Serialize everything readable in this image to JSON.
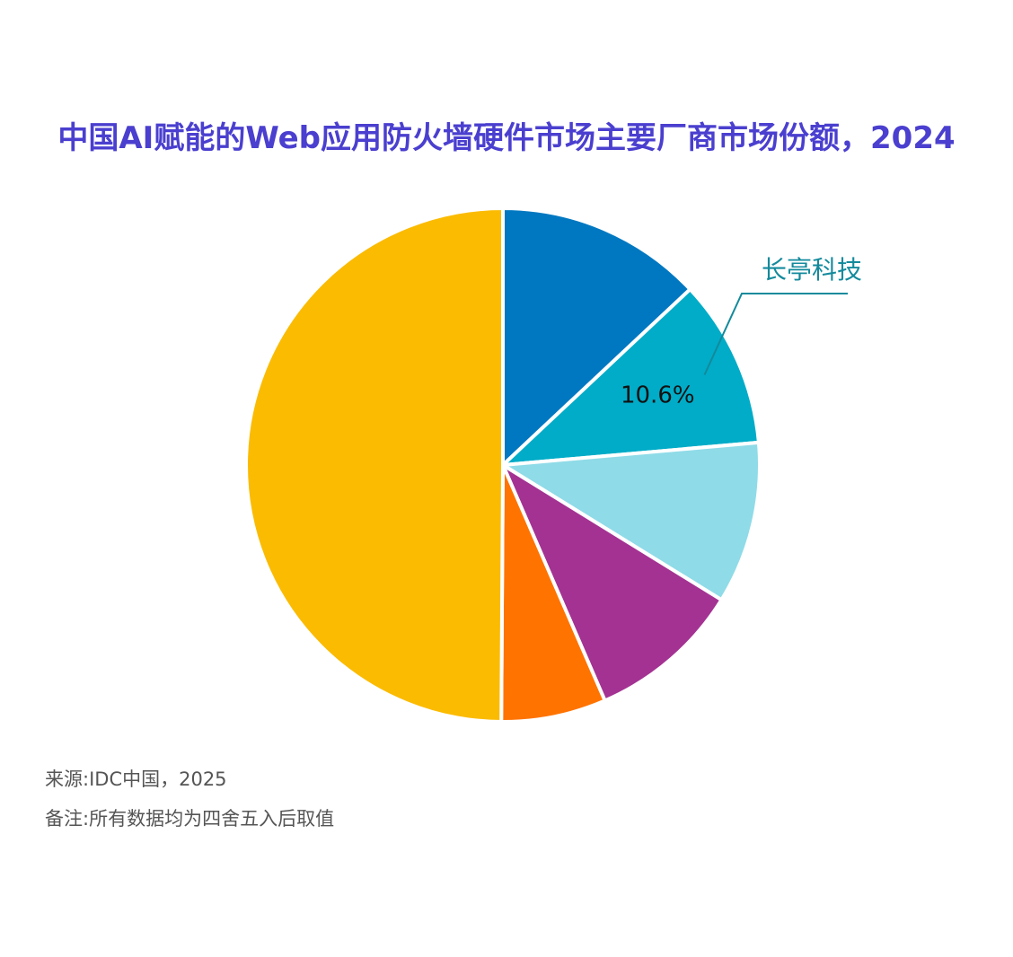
{
  "chart_data": {
    "type": "pie",
    "title": "中国AI赋能的Web应用防火墙硬件市场主要厂商市场份额，2024",
    "slices": [
      {
        "name": "",
        "value": 13.0,
        "color": "#0078c1",
        "data_label": ""
      },
      {
        "name": "长亭科技",
        "value": 10.6,
        "color": "#00acc8",
        "data_label": "10.6%"
      },
      {
        "name": "",
        "value": 10.2,
        "color": "#8fdbe8",
        "data_label": ""
      },
      {
        "name": "",
        "value": 9.7,
        "color": "#a43292",
        "data_label": ""
      },
      {
        "name": "",
        "value": 6.6,
        "color": "#ff7300",
        "data_label": ""
      },
      {
        "name": "",
        "value": 49.9,
        "color": "#fbbb00",
        "data_label": ""
      }
    ],
    "start_angle_deg": 0,
    "direction": "clockwise",
    "callout_color": "#138a9c"
  },
  "footer": {
    "source": "来源:IDC中国，2025",
    "remark": "备注:所有数据均为四舍五入后取值"
  }
}
